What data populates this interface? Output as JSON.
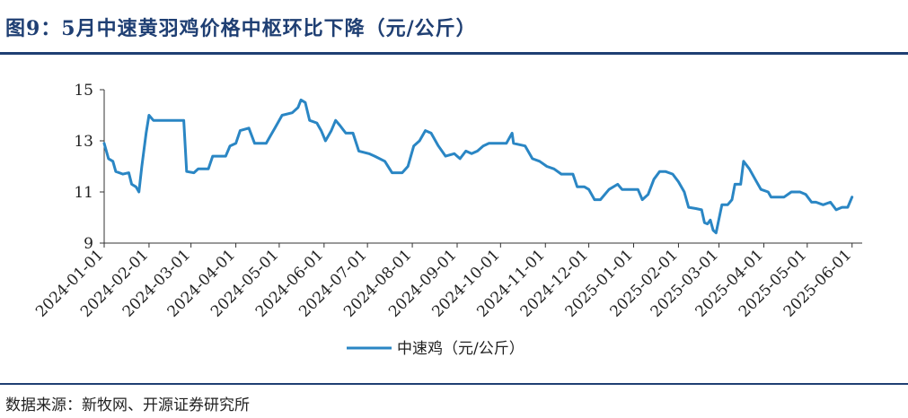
{
  "page": {
    "title": "图9：5月中速黄羽鸡价格中枢环比下降（元/公斤）",
    "source": "数据来源：新牧网、开源证券研究所"
  },
  "colors": {
    "series": "#2a86c4",
    "brand": "#1f3f73",
    "axis": "#333333"
  },
  "chart_data": {
    "type": "line",
    "title": "5月中速黄羽鸡价格中枢环比下降（元/公斤）",
    "xlabel": "",
    "ylabel": "",
    "ylim": [
      9,
      15
    ],
    "yticks": [
      9,
      11,
      13,
      15
    ],
    "x_range": [
      "2024-01-01",
      "2025-06-08"
    ],
    "xticks": [
      "2024-01-01",
      "2024-02-01",
      "2024-03-01",
      "2024-04-01",
      "2024-05-01",
      "2024-06-01",
      "2024-07-01",
      "2024-08-01",
      "2024-09-01",
      "2024-10-01",
      "2024-11-01",
      "2024-12-01",
      "2025-01-01",
      "2025-02-01",
      "2025-03-01",
      "2025-04-01",
      "2025-05-01",
      "2025-06-01"
    ],
    "legend": "bottom-center",
    "grid": false,
    "series": [
      {
        "name": "中速鸡（元/公斤）",
        "points": [
          [
            "2024-01-01",
            12.9
          ],
          [
            "2024-01-04",
            12.3
          ],
          [
            "2024-01-07",
            12.2
          ],
          [
            "2024-01-09",
            11.8
          ],
          [
            "2024-01-14",
            11.7
          ],
          [
            "2024-01-18",
            11.75
          ],
          [
            "2024-01-20",
            11.3
          ],
          [
            "2024-01-23",
            11.2
          ],
          [
            "2024-01-25",
            11.0
          ],
          [
            "2024-01-27",
            12.0
          ],
          [
            "2024-01-30",
            13.3
          ],
          [
            "2024-02-01",
            14.0
          ],
          [
            "2024-02-04",
            13.8
          ],
          [
            "2024-02-10",
            13.8
          ],
          [
            "2024-02-18",
            13.8
          ],
          [
            "2024-02-25",
            13.8
          ],
          [
            "2024-02-27",
            11.8
          ],
          [
            "2024-03-03",
            11.75
          ],
          [
            "2024-03-06",
            11.9
          ],
          [
            "2024-03-13",
            11.9
          ],
          [
            "2024-03-16",
            12.4
          ],
          [
            "2024-03-25",
            12.4
          ],
          [
            "2024-03-28",
            12.8
          ],
          [
            "2024-04-01",
            12.9
          ],
          [
            "2024-04-04",
            13.4
          ],
          [
            "2024-04-10",
            13.5
          ],
          [
            "2024-04-14",
            12.9
          ],
          [
            "2024-04-22",
            12.9
          ],
          [
            "2024-04-25",
            13.2
          ],
          [
            "2024-04-28",
            13.5
          ],
          [
            "2024-05-03",
            14.0
          ],
          [
            "2024-05-10",
            14.1
          ],
          [
            "2024-05-14",
            14.3
          ],
          [
            "2024-05-16",
            14.6
          ],
          [
            "2024-05-19",
            14.5
          ],
          [
            "2024-05-22",
            13.8
          ],
          [
            "2024-05-27",
            13.7
          ],
          [
            "2024-05-30",
            13.4
          ],
          [
            "2024-06-02",
            13.0
          ],
          [
            "2024-06-06",
            13.4
          ],
          [
            "2024-06-09",
            13.8
          ],
          [
            "2024-06-12",
            13.6
          ],
          [
            "2024-06-16",
            13.3
          ],
          [
            "2024-06-21",
            13.3
          ],
          [
            "2024-06-25",
            12.6
          ],
          [
            "2024-07-02",
            12.5
          ],
          [
            "2024-07-06",
            12.4
          ],
          [
            "2024-07-13",
            12.2
          ],
          [
            "2024-07-18",
            11.75
          ],
          [
            "2024-07-25",
            11.75
          ],
          [
            "2024-07-29",
            12.0
          ],
          [
            "2024-08-02",
            12.8
          ],
          [
            "2024-08-06",
            13.0
          ],
          [
            "2024-08-10",
            13.4
          ],
          [
            "2024-08-14",
            13.3
          ],
          [
            "2024-08-19",
            12.8
          ],
          [
            "2024-08-24",
            12.4
          ],
          [
            "2024-08-30",
            12.5
          ],
          [
            "2024-09-03",
            12.3
          ],
          [
            "2024-09-07",
            12.6
          ],
          [
            "2024-09-11",
            12.5
          ],
          [
            "2024-09-15",
            12.6
          ],
          [
            "2024-09-19",
            12.8
          ],
          [
            "2024-09-23",
            12.9
          ],
          [
            "2024-10-01",
            12.9
          ],
          [
            "2024-10-05",
            12.9
          ],
          [
            "2024-10-09",
            13.3
          ],
          [
            "2024-10-10",
            12.9
          ],
          [
            "2024-10-18",
            12.8
          ],
          [
            "2024-10-23",
            12.3
          ],
          [
            "2024-10-28",
            12.2
          ],
          [
            "2024-11-02",
            12.0
          ],
          [
            "2024-11-07",
            11.9
          ],
          [
            "2024-11-12",
            11.7
          ],
          [
            "2024-11-20",
            11.7
          ],
          [
            "2024-11-23",
            11.2
          ],
          [
            "2024-11-28",
            11.2
          ],
          [
            "2024-12-01",
            11.1
          ],
          [
            "2024-12-05",
            10.7
          ],
          [
            "2024-12-09",
            10.7
          ],
          [
            "2024-12-15",
            11.1
          ],
          [
            "2024-12-21",
            11.3
          ],
          [
            "2024-12-24",
            11.1
          ],
          [
            "2025-01-04",
            11.1
          ],
          [
            "2025-01-07",
            10.7
          ],
          [
            "2025-01-11",
            10.9
          ],
          [
            "2025-01-15",
            11.5
          ],
          [
            "2025-01-19",
            11.8
          ],
          [
            "2025-01-23",
            11.8
          ],
          [
            "2025-01-28",
            11.7
          ],
          [
            "2025-02-01",
            11.4
          ],
          [
            "2025-02-05",
            11.0
          ],
          [
            "2025-02-08",
            10.4
          ],
          [
            "2025-02-13",
            10.35
          ],
          [
            "2025-02-17",
            10.3
          ],
          [
            "2025-02-19",
            9.8
          ],
          [
            "2025-02-21",
            9.75
          ],
          [
            "2025-02-23",
            9.9
          ],
          [
            "2025-02-25",
            9.5
          ],
          [
            "2025-02-27",
            9.4
          ],
          [
            "2025-03-03",
            10.5
          ],
          [
            "2025-03-07",
            10.5
          ],
          [
            "2025-03-10",
            10.7
          ],
          [
            "2025-03-12",
            11.3
          ],
          [
            "2025-03-16",
            11.3
          ],
          [
            "2025-03-18",
            12.2
          ],
          [
            "2025-03-22",
            11.9
          ],
          [
            "2025-03-26",
            11.5
          ],
          [
            "2025-03-30",
            11.1
          ],
          [
            "2025-04-04",
            11.0
          ],
          [
            "2025-04-06",
            10.8
          ],
          [
            "2025-04-15",
            10.8
          ],
          [
            "2025-04-20",
            11.0
          ],
          [
            "2025-04-26",
            11.0
          ],
          [
            "2025-04-30",
            10.9
          ],
          [
            "2025-05-04",
            10.6
          ],
          [
            "2025-05-07",
            10.6
          ],
          [
            "2025-05-12",
            10.5
          ],
          [
            "2025-05-17",
            10.6
          ],
          [
            "2025-05-21",
            10.3
          ],
          [
            "2025-05-25",
            10.4
          ],
          [
            "2025-05-29",
            10.4
          ],
          [
            "2025-06-01",
            10.8
          ]
        ]
      }
    ]
  }
}
